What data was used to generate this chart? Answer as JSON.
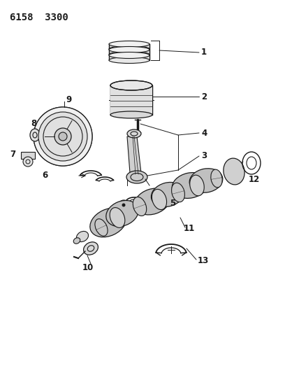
{
  "title": "6158  3300",
  "bg_color": "#ffffff",
  "line_color": "#1a1a1a",
  "title_fontsize": 10,
  "label_fontsize": 8.5,
  "figsize": [
    4.08,
    5.33
  ],
  "dpi": 100
}
